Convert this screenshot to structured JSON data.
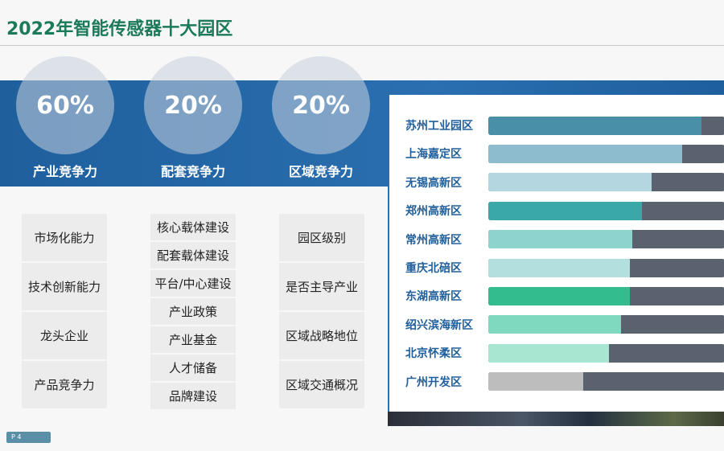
{
  "title": "2022年智能传感器十大园区",
  "weights": [
    {
      "percent": "60%",
      "label": "产业竞争力",
      "items": [
        "市场化能力",
        "技术创新能力",
        "龙头企业",
        "产品竞争力"
      ]
    },
    {
      "percent": "20%",
      "label": "配套竞争力",
      "items": [
        "核心载体建设",
        "配套载体建设",
        "平台/中心建设",
        "产业政策",
        "产业基金",
        "人才储备",
        "品牌建设"
      ]
    },
    {
      "percent": "20%",
      "label": "区域竞争力",
      "items": [
        "园区级别",
        "是否主导产业",
        "区域战略地位",
        "区域交通概况"
      ]
    }
  ],
  "chart_data": {
    "type": "bar",
    "orientation": "horizontal",
    "xlim": [
      0,
      1
    ],
    "categories": [
      "苏州工业园区",
      "上海嘉定区",
      "无锡高新区",
      "郑州高新区",
      "常州高新区",
      "重庆北碚区",
      "东湖高新区",
      "绍兴滨海新区",
      "北京怀柔区",
      "广州开发区"
    ],
    "values": [
      0.9,
      0.82,
      0.69,
      0.65,
      0.61,
      0.6,
      0.6,
      0.56,
      0.51,
      0.4
    ],
    "colors": [
      "#4a8fa8",
      "#8dbccf",
      "#b4d6e0",
      "#3aa8a8",
      "#8fd3cf",
      "#b3e0df",
      "#33bd8e",
      "#7fd9be",
      "#a8e6d2",
      "#bdbdbd"
    ],
    "track_color": "#5a6270"
  },
  "page_label": "P 4"
}
